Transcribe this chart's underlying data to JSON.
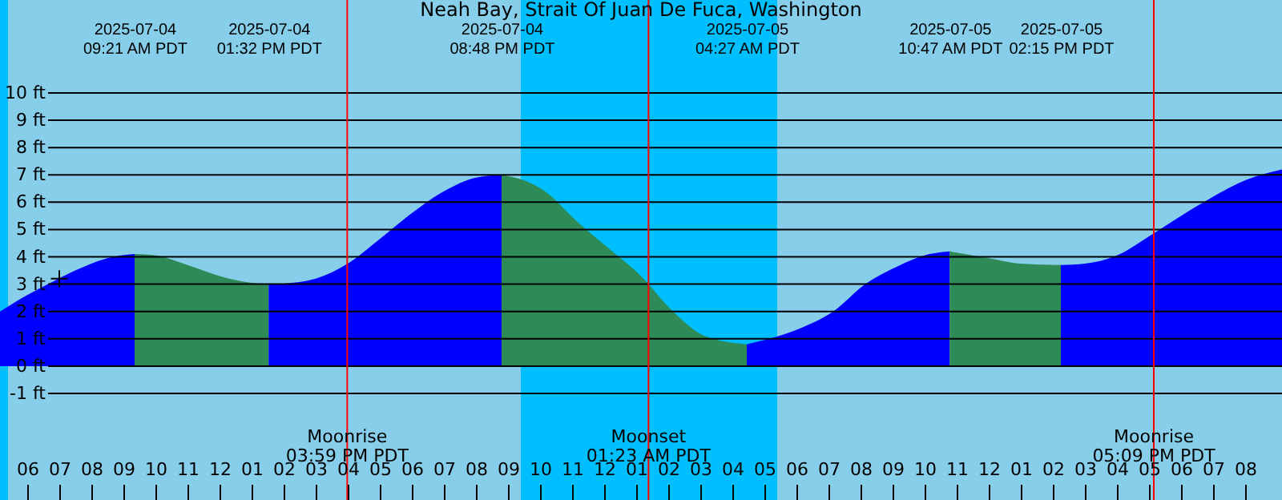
{
  "chart_data": {
    "type": "area",
    "title": "Neah Bay, Strait Of Juan De Fuca, Washington",
    "xlim": [
      "2025-07-04T05:09",
      "2025-07-05T21:09"
    ],
    "ylim": [
      -4.9,
      13.4
    ],
    "xticks": [
      {
        "value": "2025-07-04T06:00",
        "label": "06"
      },
      {
        "value": "2025-07-04T07:00",
        "label": "07"
      },
      {
        "value": "2025-07-04T08:00",
        "label": "08"
      },
      {
        "value": "2025-07-04T09:00",
        "label": "09"
      },
      {
        "value": "2025-07-04T10:00",
        "label": "10"
      },
      {
        "value": "2025-07-04T11:00",
        "label": "11"
      },
      {
        "value": "2025-07-04T12:00",
        "label": "12"
      },
      {
        "value": "2025-07-04T13:00",
        "label": "01"
      },
      {
        "value": "2025-07-04T14:00",
        "label": "02"
      },
      {
        "value": "2025-07-04T15:00",
        "label": "03"
      },
      {
        "value": "2025-07-04T16:00",
        "label": "04"
      },
      {
        "value": "2025-07-04T17:00",
        "label": "05"
      },
      {
        "value": "2025-07-04T18:00",
        "label": "06"
      },
      {
        "value": "2025-07-04T19:00",
        "label": "07"
      },
      {
        "value": "2025-07-04T20:00",
        "label": "08"
      },
      {
        "value": "2025-07-04T21:00",
        "label": "09"
      },
      {
        "value": "2025-07-04T22:00",
        "label": "10"
      },
      {
        "value": "2025-07-04T23:00",
        "label": "11"
      },
      {
        "value": "2025-07-05T00:00",
        "label": "12"
      },
      {
        "value": "2025-07-05T01:00",
        "label": "01"
      },
      {
        "value": "2025-07-05T02:00",
        "label": "02"
      },
      {
        "value": "2025-07-05T03:00",
        "label": "03"
      },
      {
        "value": "2025-07-05T04:00",
        "label": "04"
      },
      {
        "value": "2025-07-05T05:00",
        "label": "05"
      },
      {
        "value": "2025-07-05T06:00",
        "label": "06"
      },
      {
        "value": "2025-07-05T07:00",
        "label": "07"
      },
      {
        "value": "2025-07-05T08:00",
        "label": "08"
      },
      {
        "value": "2025-07-05T09:00",
        "label": "09"
      },
      {
        "value": "2025-07-05T10:00",
        "label": "10"
      },
      {
        "value": "2025-07-05T11:00",
        "label": "11"
      },
      {
        "value": "2025-07-05T12:00",
        "label": "12"
      },
      {
        "value": "2025-07-05T13:00",
        "label": "01"
      },
      {
        "value": "2025-07-05T14:00",
        "label": "02"
      },
      {
        "value": "2025-07-05T15:00",
        "label": "03"
      },
      {
        "value": "2025-07-05T16:00",
        "label": "04"
      },
      {
        "value": "2025-07-05T17:00",
        "label": "05"
      },
      {
        "value": "2025-07-05T18:00",
        "label": "06"
      },
      {
        "value": "2025-07-05T19:00",
        "label": "07"
      },
      {
        "value": "2025-07-05T20:00",
        "label": "08"
      }
    ],
    "yticks": [
      {
        "value": -1,
        "label": "-1 ft"
      },
      {
        "value": 0,
        "label": "0 ft"
      },
      {
        "value": 1,
        "label": "1 ft"
      },
      {
        "value": 2,
        "label": "2 ft"
      },
      {
        "value": 3,
        "label": "3 ft"
      },
      {
        "value": 4,
        "label": "4 ft"
      },
      {
        "value": 5,
        "label": "5 ft"
      },
      {
        "value": 6,
        "label": "6 ft"
      },
      {
        "value": 7,
        "label": "7 ft"
      },
      {
        "value": 8,
        "label": "8 ft"
      },
      {
        "value": 9,
        "label": "9 ft"
      },
      {
        "value": 10,
        "label": "10 ft"
      }
    ],
    "grid": "y",
    "series": [
      {
        "color": "#0000ff",
        "x": [
          "2025-07-04T05:09",
          "2025-07-04T06:00",
          "2025-07-04T06:39",
          "2025-07-04T07:30",
          "2025-07-04T08:30",
          "2025-07-04T09:21"
        ],
        "values": [
          2.0,
          2.6,
          3.0,
          3.5,
          3.95,
          4.1
        ]
      },
      {
        "color": "#2e8b57",
        "x": [
          "2025-07-04T09:21",
          "2025-07-04T10:00",
          "2025-07-04T11:00",
          "2025-07-04T12:00",
          "2025-07-04T13:00",
          "2025-07-04T13:32"
        ],
        "values": [
          4.1,
          4.05,
          3.7,
          3.3,
          3.05,
          3.0
        ]
      },
      {
        "color": "#0000ff",
        "x": [
          "2025-07-04T13:32",
          "2025-07-04T14:00",
          "2025-07-04T15:00",
          "2025-07-04T16:00",
          "2025-07-04T17:00",
          "2025-07-04T18:00",
          "2025-07-04T19:00",
          "2025-07-04T20:00",
          "2025-07-04T20:48"
        ],
        "values": [
          3.0,
          3.02,
          3.2,
          3.75,
          4.65,
          5.6,
          6.4,
          6.9,
          7.0
        ]
      },
      {
        "color": "#2e8b57",
        "x": [
          "2025-07-04T20:48",
          "2025-07-04T21:30",
          "2025-07-04T22:09",
          "2025-07-04T23:09",
          "2025-07-05T00:09",
          "2025-07-05T01:09",
          "2025-07-05T02:09",
          "2025-07-05T03:09",
          "2025-07-05T04:27"
        ],
        "values": [
          7.0,
          6.8,
          6.4,
          5.3,
          4.3,
          3.3,
          2.0,
          1.1,
          0.8
        ]
      },
      {
        "color": "#0000ff",
        "x": [
          "2025-07-05T04:27",
          "2025-07-05T05:09",
          "2025-07-05T06:09",
          "2025-07-05T07:09",
          "2025-07-05T08:09",
          "2025-07-05T09:09",
          "2025-07-05T10:09",
          "2025-07-05T10:47"
        ],
        "values": [
          0.8,
          1.0,
          1.4,
          2.0,
          3.0,
          3.65,
          4.1,
          4.2
        ]
      },
      {
        "color": "#2e8b57",
        "x": [
          "2025-07-05T10:47",
          "2025-07-05T12:00",
          "2025-07-05T13:00",
          "2025-07-05T14:15"
        ],
        "values": [
          4.2,
          3.95,
          3.75,
          3.7
        ]
      },
      {
        "color": "#0000ff",
        "x": [
          "2025-07-05T14:15",
          "2025-07-05T15:00",
          "2025-07-05T16:00",
          "2025-07-05T17:00",
          "2025-07-05T18:00",
          "2025-07-05T19:00",
          "2025-07-05T20:00",
          "2025-07-05T21:09"
        ],
        "values": [
          3.7,
          3.75,
          4.05,
          4.75,
          5.5,
          6.2,
          6.8,
          7.2
        ]
      },
      {
        "type": "scatter",
        "marker": "cross",
        "color": "#000000",
        "x": [
          "2025-07-04T07:00"
        ],
        "values": [
          3.2
        ]
      }
    ],
    "bands": [
      {
        "axis": "x",
        "from": "2025-07-04T05:09",
        "to": "2025-07-04T05:24",
        "color": "#00bfff"
      },
      {
        "axis": "x",
        "from": "2025-07-04T05:24",
        "to": "2025-07-04T21:24",
        "color": "#87ceeb"
      },
      {
        "axis": "x",
        "from": "2025-07-04T21:24",
        "to": "2025-07-05T05:24",
        "color": "#00bfff"
      },
      {
        "axis": "x",
        "from": "2025-07-05T05:24",
        "to": "2025-07-05T21:09",
        "color": "#87ceeb"
      }
    ],
    "ref_lines": [
      {
        "axis": "x",
        "value": "2025-07-04T15:59",
        "label": "Moonrise\n03:59 PM PDT",
        "color": "#ff0000"
      },
      {
        "axis": "x",
        "value": "2025-07-05T01:23",
        "label": "Moonset\n01:23 AM PDT",
        "color": "#ff0000"
      },
      {
        "axis": "x",
        "value": "2025-07-05T17:09",
        "label": "Moonrise\n05:09 PM PDT",
        "color": "#ff0000"
      }
    ],
    "x2lim": [
      "2025-07-04T05:09",
      "2025-07-05T21:09"
    ],
    "x2ticks": [
      {
        "value": "2025-07-04T09:21",
        "label": "2025-07-04\n09:21 AM PDT"
      },
      {
        "value": "2025-07-04T13:32",
        "label": "2025-07-04\n01:32 PM PDT"
      },
      {
        "value": "2025-07-04T20:48",
        "label": "2025-07-04\n08:48 PM PDT"
      },
      {
        "value": "2025-07-05T04:27",
        "label": "2025-07-05\n04:27 AM PDT"
      },
      {
        "value": "2025-07-05T10:47",
        "label": "2025-07-05\n10:47 AM PDT"
      },
      {
        "value": "2025-07-05T14:15",
        "label": "2025-07-05\n02:15 PM PDT"
      }
    ]
  }
}
